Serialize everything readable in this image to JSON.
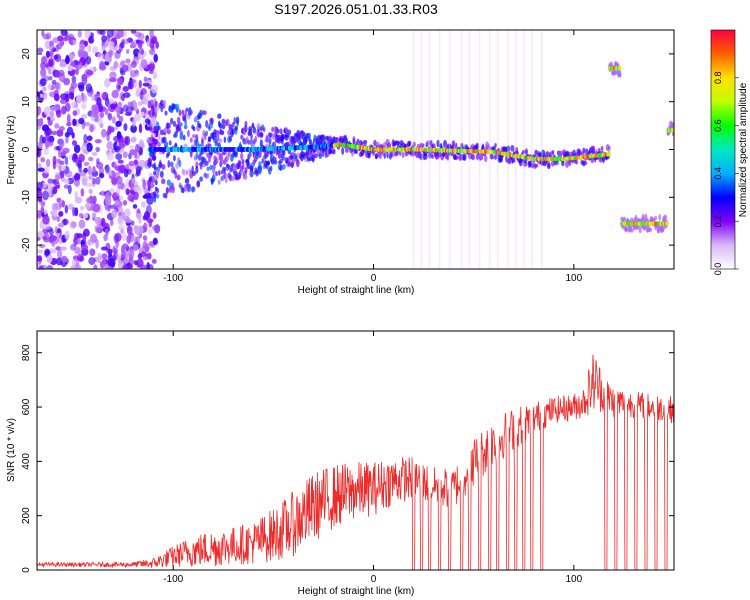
{
  "title": "S197.2026.051.01.33.R03",
  "chart_data": [
    {
      "type": "heatmap",
      "xlabel": "Height of straight line (km)",
      "ylabel": "Frequency (Hz)",
      "xlim": [
        -168,
        150
      ],
      "ylim": [
        -25,
        25
      ],
      "xticks": [
        -100,
        0,
        100
      ],
      "yticks": [
        -20,
        -10,
        0,
        10,
        20
      ],
      "colorbar": {
        "label": "Normalized spectral amplitude",
        "range": [
          0,
          1
        ],
        "ticks": [
          0.0,
          0.2,
          0.4,
          0.6,
          0.8
        ],
        "colormap": [
          "#ffffff",
          "#d8b8f8",
          "#8000ff",
          "#0000ff",
          "#00b0ff",
          "#00e8c0",
          "#00ff00",
          "#c0ff00",
          "#ffe000",
          "#ff6000",
          "#ff0040"
        ]
      },
      "ridges": [
        {
          "x": [
            -112,
            -60,
            -30,
            -15,
            0,
            20,
            60,
            80,
            95,
            118
          ],
          "y": [
            0,
            0,
            0.5,
            1,
            0,
            0,
            -0.5,
            -2,
            -2,
            -1
          ]
        },
        {
          "x": [
            118,
            123
          ],
          "y": [
            17,
            17
          ]
        },
        {
          "x": [
            124,
            147
          ],
          "y": [
            -15.5,
            -15.5
          ]
        },
        {
          "x": [
            147,
            150
          ],
          "y": [
            4,
            4
          ]
        }
      ],
      "noise_region": {
        "x": [
          -168,
          -108
        ],
        "y": [
          -25,
          25
        ]
      }
    },
    {
      "type": "line",
      "xlabel": "Height of straight line (km)",
      "ylabel": "SNR (10 * v/v)",
      "xlim": [
        -168,
        150
      ],
      "ylim": [
        0,
        880
      ],
      "xticks": [
        -100,
        0,
        100
      ],
      "yticks": [
        0,
        200,
        400,
        600,
        800
      ],
      "series": [
        {
          "name": "SNR",
          "color": "#ee2a2a",
          "x": [
            -168,
            -140,
            -120,
            -110,
            -100,
            -90,
            -80,
            -70,
            -60,
            -50,
            -40,
            -30,
            -20,
            -10,
            0,
            10,
            20,
            30,
            40,
            50,
            60,
            70,
            80,
            90,
            100,
            105,
            110,
            115,
            120,
            130,
            140,
            150
          ],
          "y": [
            20,
            20,
            20,
            25,
            50,
            70,
            80,
            90,
            100,
            130,
            170,
            230,
            270,
            290,
            300,
            330,
            340,
            310,
            300,
            400,
            470,
            520,
            560,
            590,
            600,
            620,
            700,
            650,
            620,
            610,
            600,
            590
          ],
          "jitter": [
            8,
            8,
            10,
            20,
            40,
            60,
            70,
            70,
            80,
            100,
            120,
            130,
            120,
            110,
            100,
            90,
            80,
            70,
            80,
            90,
            90,
            80,
            60,
            50,
            50,
            60,
            120,
            70,
            60,
            50,
            50,
            50
          ],
          "dropouts_km": [
            20,
            24,
            28,
            33,
            38,
            44,
            48,
            53,
            58,
            62,
            67,
            71,
            75,
            79,
            84,
            116,
            121,
            126,
            131,
            136,
            141,
            146
          ]
        }
      ]
    }
  ]
}
